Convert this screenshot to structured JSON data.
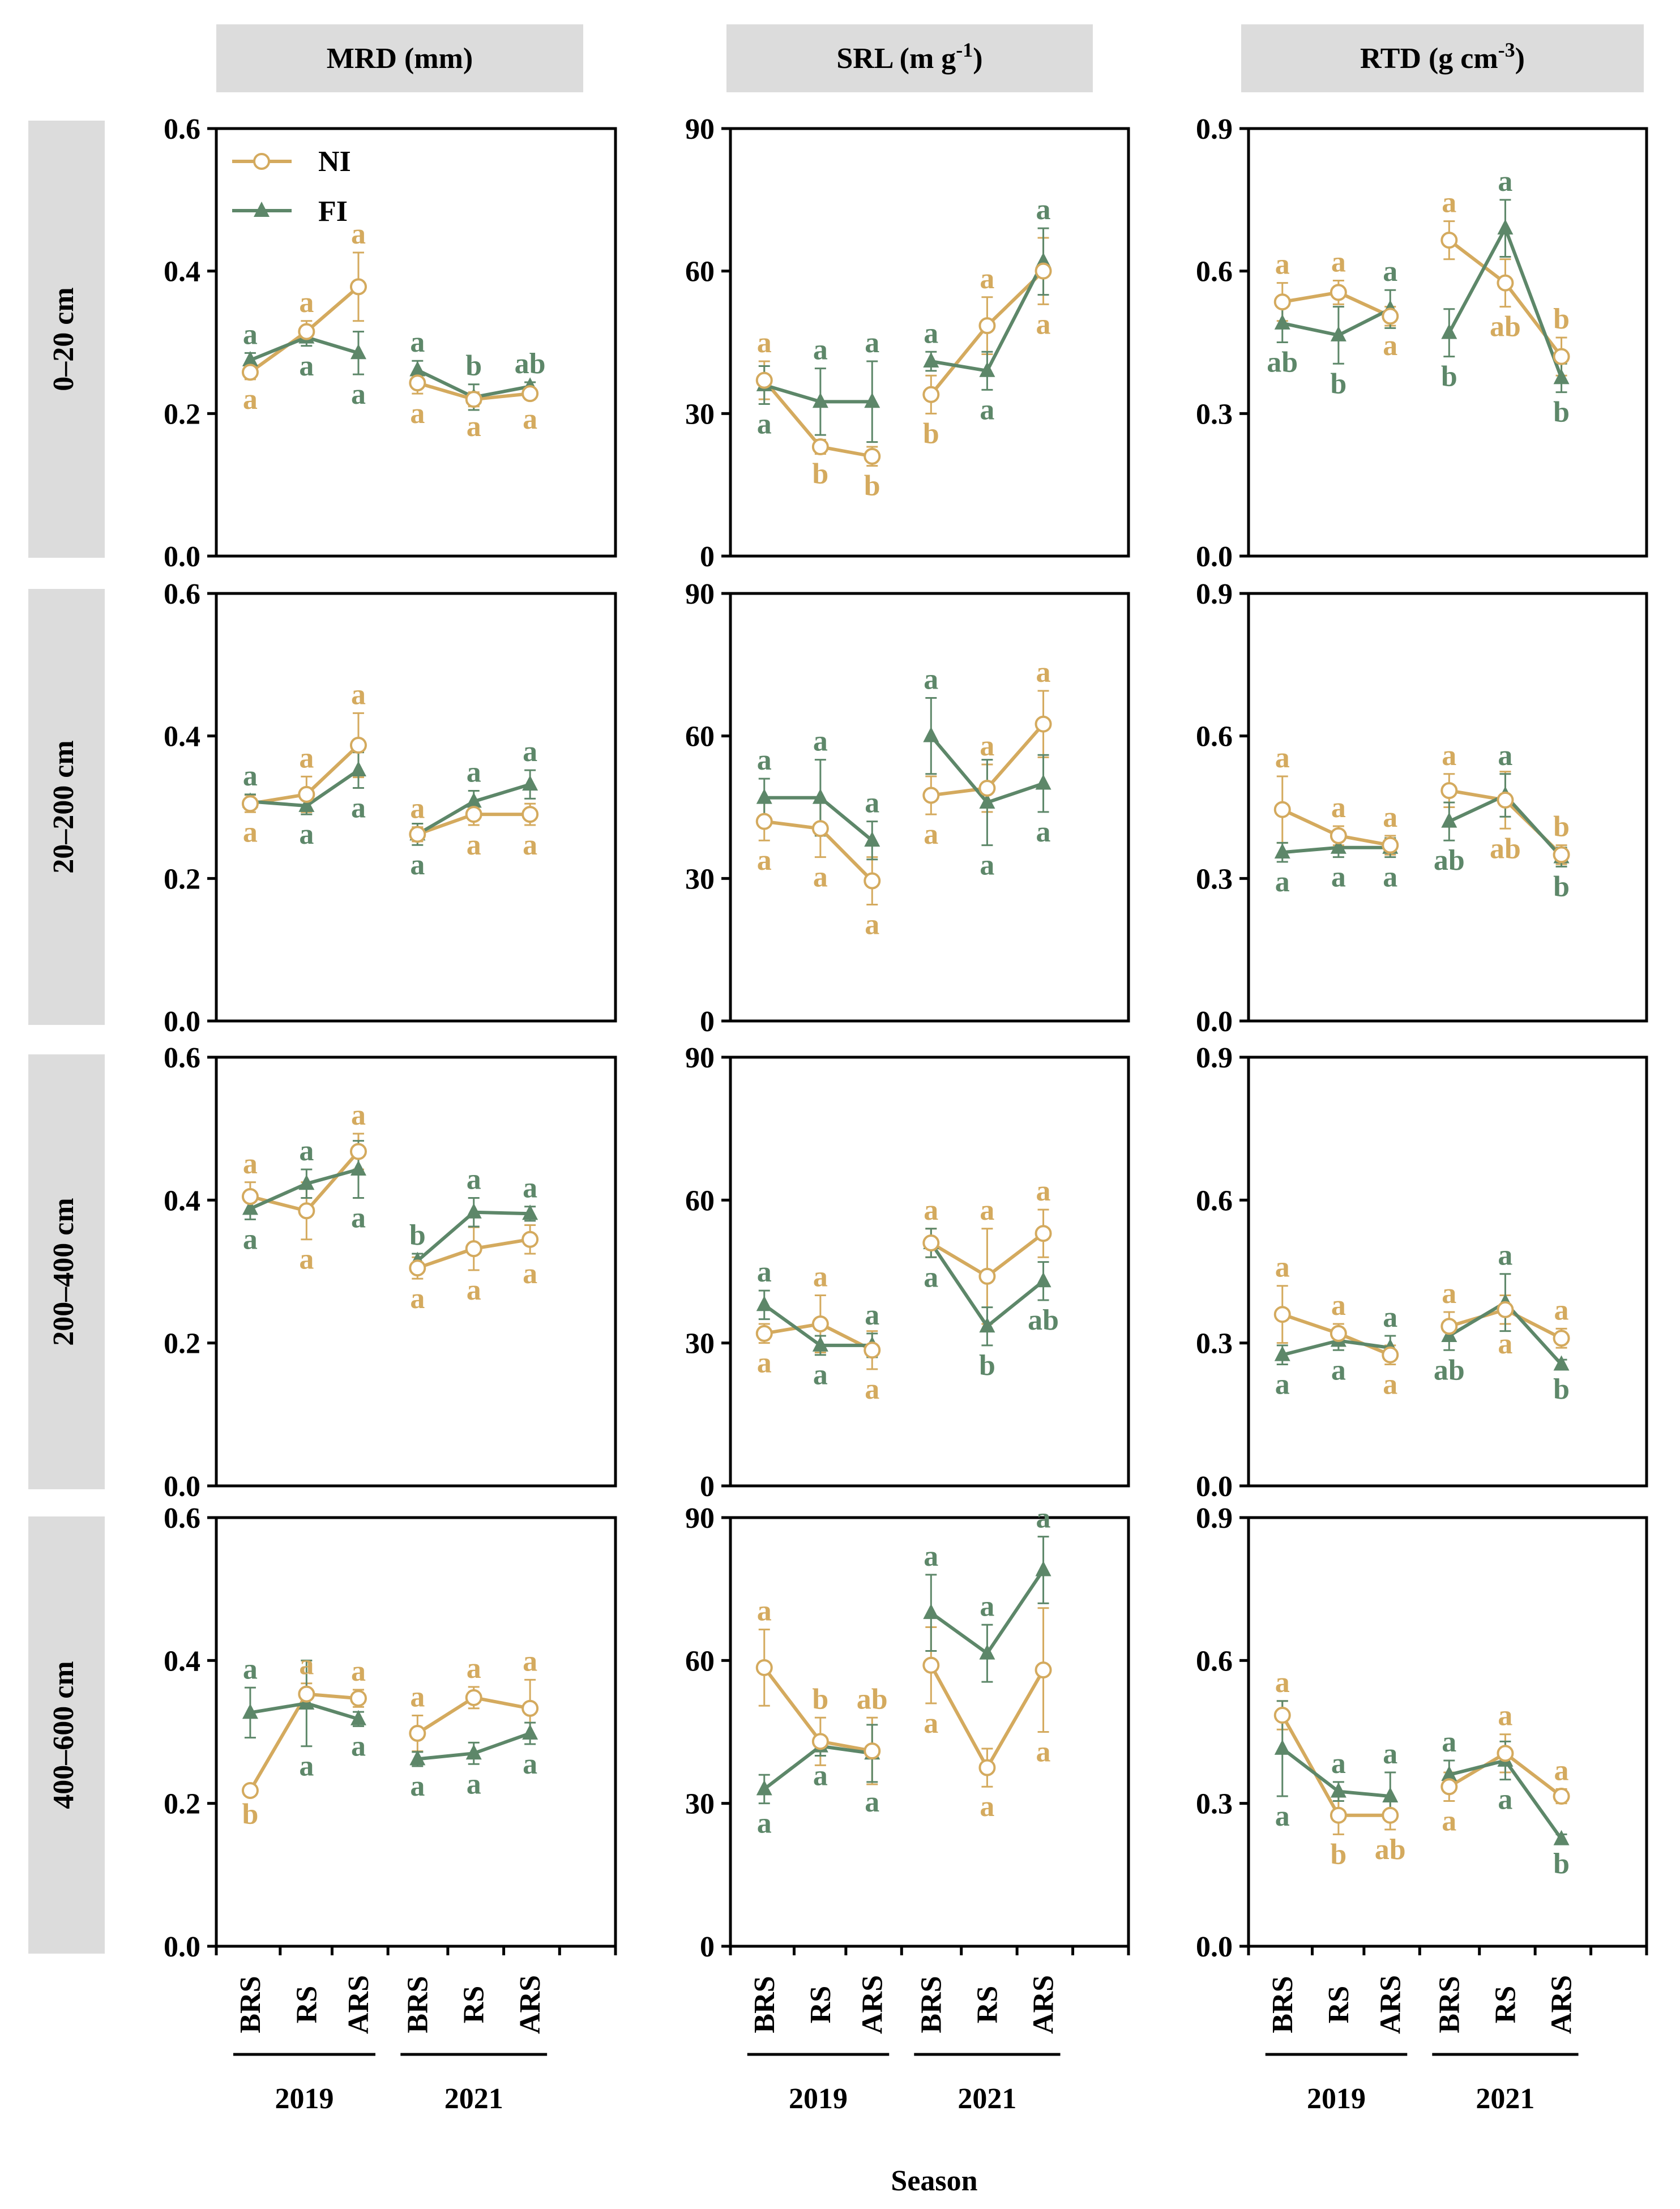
{
  "legend": {
    "ni": "NI",
    "fi": "FI"
  },
  "colors": {
    "ni": "#d4aa5e",
    "fi": "#5d8769",
    "strip": "#dcdcdc",
    "axis": "#000000"
  },
  "column_titles": [
    {
      "base": "MRD (mm)",
      "sup": ""
    },
    {
      "base": "SRL (m g",
      "sup": "-1",
      "close": ")"
    },
    {
      "base": "RTD (g cm",
      "sup": "-3",
      "close": ")"
    }
  ],
  "row_titles": [
    "0–20 cm",
    "20–200 cm",
    "200–400 cm",
    "400–600 cm"
  ],
  "x_categories": [
    "BRS",
    "RS",
    "ARS",
    "BRS",
    "RS",
    "ARS"
  ],
  "years": [
    "2019",
    "2021"
  ],
  "x_title": "Season",
  "chart_data": {
    "type": "line",
    "x_title": "Season",
    "categories": [
      "BRS",
      "RS",
      "ARS",
      "BRS",
      "RS",
      "ARS"
    ],
    "groups": [
      "2019",
      "2019",
      "2019",
      "2021",
      "2021",
      "2021"
    ],
    "columns": [
      {
        "variable": "MRD (mm)",
        "ylim": [
          0,
          0.6
        ],
        "ticks": [
          "0.0",
          "0.2",
          "0.4",
          "0.6"
        ]
      },
      {
        "variable": "SRL (m g-1)",
        "ylim": [
          0,
          90
        ],
        "ticks": [
          "0",
          "30",
          "60",
          "90"
        ]
      },
      {
        "variable": "RTD (g cm-3)",
        "ylim": [
          0,
          0.9
        ],
        "ticks": [
          "0.0",
          "0.3",
          "0.6",
          "0.9"
        ]
      }
    ],
    "panels": [
      {
        "row": "0–20 cm",
        "variable": "MRD (mm)",
        "NI": {
          "values": [
            0.258,
            0.315,
            0.378,
            0.243,
            0.22,
            0.228
          ],
          "err": [
            0.01,
            0.015,
            0.048,
            0.015,
            0.01,
            0.008
          ],
          "labels": [
            "a",
            "a",
            "a",
            "a",
            "a",
            "a"
          ]
        },
        "FI": {
          "values": [
            0.275,
            0.307,
            0.285,
            0.261,
            0.223,
            0.238
          ],
          "err": [
            0.01,
            0.012,
            0.03,
            0.013,
            0.018,
            0.006
          ],
          "labels": [
            "a",
            "a",
            "a",
            "a",
            "b",
            "ab"
          ]
        }
      },
      {
        "row": "0–20 cm",
        "variable": "SRL (m g-1)",
        "NI": {
          "values": [
            37,
            23,
            21,
            34,
            48.5,
            60
          ],
          "err": [
            4,
            1.5,
            2,
            4,
            6,
            7
          ],
          "labels": [
            "a",
            "b",
            "b",
            "b",
            "a",
            "a"
          ]
        },
        "FI": {
          "values": [
            36,
            32.5,
            32.5,
            41,
            39,
            62
          ],
          "err": [
            4,
            7,
            8.5,
            2,
            4,
            7
          ],
          "labels": [
            "a",
            "a",
            "a",
            "a",
            "a",
            "a"
          ]
        }
      },
      {
        "row": "0–20 cm",
        "variable": "RTD (g cm-3)",
        "NI": {
          "values": [
            0.535,
            0.555,
            0.505,
            0.665,
            0.575,
            0.42
          ],
          "err": [
            0.04,
            0.025,
            0.02,
            0.04,
            0.05,
            0.04
          ],
          "labels": [
            "a",
            "a",
            "a",
            "a",
            "ab",
            "b"
          ]
        },
        "FI": {
          "values": [
            0.49,
            0.465,
            0.52,
            0.47,
            0.69,
            0.375
          ],
          "err": [
            0.04,
            0.06,
            0.04,
            0.05,
            0.06,
            0.03
          ],
          "labels": [
            "ab",
            "b",
            "a",
            "b",
            "a",
            "b"
          ]
        }
      },
      {
        "row": "20–200 cm",
        "variable": "MRD (mm)",
        "NI": {
          "values": [
            0.305,
            0.318,
            0.387,
            0.262,
            0.29,
            0.29
          ],
          "err": [
            0.012,
            0.025,
            0.045,
            0.01,
            0.015,
            0.015
          ],
          "labels": [
            "a",
            "a",
            "a",
            "a",
            "a",
            "a"
          ]
        },
        "FI": {
          "values": [
            0.308,
            0.302,
            0.352,
            0.262,
            0.308,
            0.332
          ],
          "err": [
            0.01,
            0.012,
            0.025,
            0.015,
            0.015,
            0.02
          ],
          "labels": [
            "a",
            "a",
            "a",
            "a",
            "a",
            "a"
          ]
        }
      },
      {
        "row": "20–200 cm",
        "variable": "SRL (m g-1)",
        "NI": {
          "values": [
            42,
            40.5,
            29.5,
            47.5,
            49,
            62.5
          ],
          "err": [
            4,
            6,
            5,
            4,
            5,
            7
          ],
          "labels": [
            "a",
            "a",
            "a",
            "a",
            "a",
            "a"
          ]
        },
        "FI": {
          "values": [
            47,
            47,
            38,
            60,
            46,
            50
          ],
          "err": [
            4,
            8,
            4,
            8,
            9,
            6
          ],
          "labels": [
            "a",
            "a",
            "a",
            "a",
            "a",
            "a"
          ]
        }
      },
      {
        "row": "20–200 cm",
        "variable": "RTD (g cm-3)",
        "NI": {
          "values": [
            0.445,
            0.39,
            0.37,
            0.485,
            0.465,
            0.35
          ],
          "err": [
            0.07,
            0.02,
            0.02,
            0.035,
            0.06,
            0.02
          ],
          "labels": [
            "a",
            "a",
            "a",
            "a",
            "ab",
            "b"
          ]
        },
        "FI": {
          "values": [
            0.355,
            0.365,
            0.365,
            0.42,
            0.475,
            0.345
          ],
          "err": [
            0.02,
            0.02,
            0.02,
            0.04,
            0.045,
            0.02
          ],
          "labels": [
            "a",
            "a",
            "a",
            "ab",
            "a",
            "b"
          ]
        }
      },
      {
        "row": "200–400 cm",
        "variable": "MRD (mm)",
        "NI": {
          "values": [
            0.405,
            0.385,
            0.468,
            0.305,
            0.332,
            0.345
          ],
          "err": [
            0.02,
            0.04,
            0.025,
            0.015,
            0.03,
            0.02
          ],
          "labels": [
            "a",
            "a",
            "a",
            "a",
            "a",
            "a"
          ]
        },
        "FI": {
          "values": [
            0.388,
            0.423,
            0.443,
            0.315,
            0.383,
            0.381
          ],
          "err": [
            0.015,
            0.02,
            0.04,
            0.01,
            0.02,
            0.01
          ],
          "labels": [
            "a",
            "a",
            "a",
            "b",
            "a",
            "a"
          ]
        }
      },
      {
        "row": "200–400 cm",
        "variable": "SRL (m g-1)",
        "NI": {
          "values": [
            32,
            34,
            28.5,
            51,
            44,
            53
          ],
          "err": [
            2,
            6,
            4,
            3,
            10,
            5
          ],
          "labels": [
            "a",
            "a",
            "a",
            "a",
            "a",
            "a"
          ]
        },
        "FI": {
          "values": [
            38,
            29.5,
            29.5,
            51,
            33.5,
            43
          ],
          "err": [
            3,
            2,
            2.5,
            3,
            4,
            4
          ],
          "labels": [
            "a",
            "a",
            "a",
            "a",
            "b",
            "ab"
          ]
        }
      },
      {
        "row": "200–400 cm",
        "variable": "RTD (g cm-3)",
        "NI": {
          "values": [
            0.36,
            0.32,
            0.275,
            0.335,
            0.37,
            0.31
          ],
          "err": [
            0.06,
            0.02,
            0.02,
            0.03,
            0.03,
            0.02
          ],
          "labels": [
            "a",
            "a",
            "a",
            "a",
            "a",
            "a"
          ]
        },
        "FI": {
          "values": [
            0.275,
            0.305,
            0.29,
            0.315,
            0.385,
            0.255
          ],
          "err": [
            0.02,
            0.02,
            0.025,
            0.03,
            0.06,
            0.01
          ],
          "labels": [
            "a",
            "a",
            "a",
            "ab",
            "a",
            "b"
          ]
        }
      },
      {
        "row": "400–600 cm",
        "variable": "MRD (mm)",
        "NI": {
          "values": [
            0.218,
            0.353,
            0.347,
            0.298,
            0.348,
            0.333
          ],
          "err": [
            0.005,
            0.015,
            0.012,
            0.025,
            0.015,
            0.04
          ],
          "labels": [
            "b",
            "a",
            "a",
            "a",
            "a",
            "a"
          ]
        },
        "FI": {
          "values": [
            0.327,
            0.34,
            0.318,
            0.262,
            0.27,
            0.298
          ],
          "err": [
            0.035,
            0.06,
            0.01,
            0.01,
            0.015,
            0.015
          ],
          "labels": [
            "a",
            "a",
            "a",
            "a",
            "a",
            "a"
          ]
        }
      },
      {
        "row": "400–600 cm",
        "variable": "SRL (m g-1)",
        "NI": {
          "values": [
            58.5,
            43,
            41,
            59,
            37.5,
            58
          ],
          "err": [
            8,
            5,
            7,
            8,
            4,
            13
          ],
          "labels": [
            "a",
            "b",
            "ab",
            "a",
            "a",
            "a"
          ]
        },
        "FI": {
          "values": [
            33,
            42,
            40.5,
            70,
            61.5,
            79
          ],
          "err": [
            3,
            2,
            6,
            8,
            6,
            7
          ],
          "labels": [
            "a",
            "a",
            "a",
            "a",
            "a",
            "a"
          ]
        }
      },
      {
        "row": "400–600 cm",
        "variable": "RTD (g cm-3)",
        "NI": {
          "values": [
            0.485,
            0.275,
            0.275,
            0.335,
            0.405,
            0.315
          ],
          "err": [
            0.03,
            0.04,
            0.03,
            0.03,
            0.04,
            0.015
          ],
          "labels": [
            "a",
            "b",
            "ab",
            "a",
            "a",
            "a"
          ]
        },
        "FI": {
          "values": [
            0.415,
            0.325,
            0.315,
            0.36,
            0.39,
            0.225
          ],
          "err": [
            0.1,
            0.02,
            0.05,
            0.03,
            0.04,
            0.01
          ],
          "labels": [
            "a",
            "a",
            "a",
            "a",
            "a",
            "b"
          ]
        }
      }
    ]
  }
}
